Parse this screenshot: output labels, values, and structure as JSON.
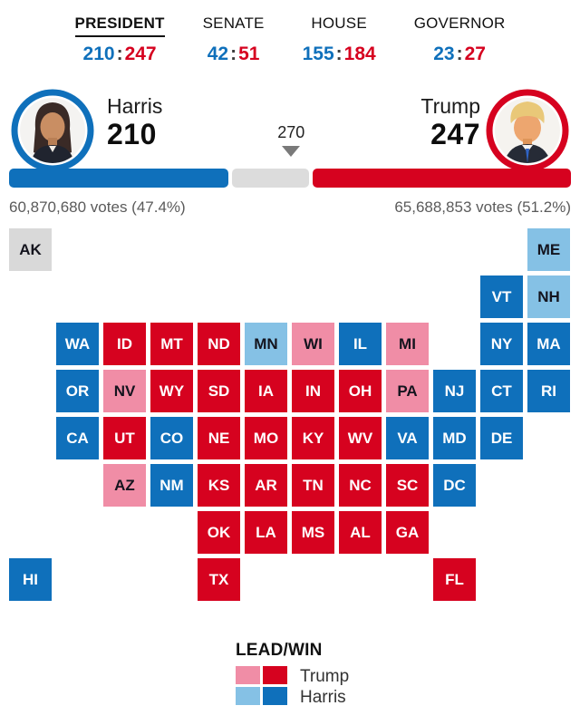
{
  "nav": {
    "separator": ":",
    "items": [
      {
        "id": "president",
        "label": "PRESIDENT",
        "dem": "210",
        "rep": "247",
        "active": true
      },
      {
        "id": "senate",
        "label": "SENATE",
        "dem": "42",
        "rep": "51",
        "active": false
      },
      {
        "id": "house",
        "label": "HOUSE",
        "dem": "155",
        "rep": "184",
        "active": false
      },
      {
        "id": "governor",
        "label": "GOVERNOR",
        "dem": "23",
        "rep": "27",
        "active": false
      }
    ]
  },
  "candidates": {
    "left": {
      "name": "Harris",
      "electoral": "210",
      "votes": "60,870,680 votes (47.4%)"
    },
    "right": {
      "name": "Trump",
      "electoral": "247",
      "votes": "65,688,853 votes (51.2%)"
    },
    "threshold_label": "270"
  },
  "bar": {
    "dem_pct": 39.0,
    "rep_pct": 45.9,
    "threshold_pct": 50.2
  },
  "colors": {
    "dem_win": "#0f70bb",
    "dem_lead": "#85c1e5",
    "rep_win": "#d6021f",
    "rep_lead": "#f08da6",
    "undecided": "#d9d9d9",
    "bar_track": "#dcdcdc",
    "marker": "#7a7a7a"
  },
  "map": {
    "tiles": [
      {
        "s": "AK",
        "c": 0,
        "r": 0,
        "st": "U"
      },
      {
        "s": "ME",
        "c": 11,
        "r": 0,
        "st": "DL"
      },
      {
        "s": "VT",
        "c": 10,
        "r": 1,
        "st": "DW"
      },
      {
        "s": "NH",
        "c": 11,
        "r": 1,
        "st": "DL"
      },
      {
        "s": "WA",
        "c": 1,
        "r": 2,
        "st": "DW"
      },
      {
        "s": "ID",
        "c": 2,
        "r": 2,
        "st": "RW"
      },
      {
        "s": "MT",
        "c": 3,
        "r": 2,
        "st": "RW"
      },
      {
        "s": "ND",
        "c": 4,
        "r": 2,
        "st": "RW"
      },
      {
        "s": "MN",
        "c": 5,
        "r": 2,
        "st": "DL"
      },
      {
        "s": "WI",
        "c": 6,
        "r": 2,
        "st": "RL"
      },
      {
        "s": "IL",
        "c": 7,
        "r": 2,
        "st": "DW"
      },
      {
        "s": "MI",
        "c": 8,
        "r": 2,
        "st": "RL"
      },
      {
        "s": "NY",
        "c": 10,
        "r": 2,
        "st": "DW"
      },
      {
        "s": "MA",
        "c": 11,
        "r": 2,
        "st": "DW"
      },
      {
        "s": "OR",
        "c": 1,
        "r": 3,
        "st": "DW"
      },
      {
        "s": "NV",
        "c": 2,
        "r": 3,
        "st": "RL"
      },
      {
        "s": "WY",
        "c": 3,
        "r": 3,
        "st": "RW"
      },
      {
        "s": "SD",
        "c": 4,
        "r": 3,
        "st": "RW"
      },
      {
        "s": "IA",
        "c": 5,
        "r": 3,
        "st": "RW"
      },
      {
        "s": "IN",
        "c": 6,
        "r": 3,
        "st": "RW"
      },
      {
        "s": "OH",
        "c": 7,
        "r": 3,
        "st": "RW"
      },
      {
        "s": "PA",
        "c": 8,
        "r": 3,
        "st": "RL"
      },
      {
        "s": "NJ",
        "c": 9,
        "r": 3,
        "st": "DW"
      },
      {
        "s": "CT",
        "c": 10,
        "r": 3,
        "st": "DW"
      },
      {
        "s": "RI",
        "c": 11,
        "r": 3,
        "st": "DW"
      },
      {
        "s": "CA",
        "c": 1,
        "r": 4,
        "st": "DW"
      },
      {
        "s": "UT",
        "c": 2,
        "r": 4,
        "st": "RW"
      },
      {
        "s": "CO",
        "c": 3,
        "r": 4,
        "st": "DW"
      },
      {
        "s": "NE",
        "c": 4,
        "r": 4,
        "st": "RW"
      },
      {
        "s": "MO",
        "c": 5,
        "r": 4,
        "st": "RW"
      },
      {
        "s": "KY",
        "c": 6,
        "r": 4,
        "st": "RW"
      },
      {
        "s": "WV",
        "c": 7,
        "r": 4,
        "st": "RW"
      },
      {
        "s": "VA",
        "c": 8,
        "r": 4,
        "st": "DW"
      },
      {
        "s": "MD",
        "c": 9,
        "r": 4,
        "st": "DW"
      },
      {
        "s": "DE",
        "c": 10,
        "r": 4,
        "st": "DW"
      },
      {
        "s": "AZ",
        "c": 2,
        "r": 5,
        "st": "RL"
      },
      {
        "s": "NM",
        "c": 3,
        "r": 5,
        "st": "DW"
      },
      {
        "s": "KS",
        "c": 4,
        "r": 5,
        "st": "RW"
      },
      {
        "s": "AR",
        "c": 5,
        "r": 5,
        "st": "RW"
      },
      {
        "s": "TN",
        "c": 6,
        "r": 5,
        "st": "RW"
      },
      {
        "s": "NC",
        "c": 7,
        "r": 5,
        "st": "RW"
      },
      {
        "s": "SC",
        "c": 8,
        "r": 5,
        "st": "RW"
      },
      {
        "s": "DC",
        "c": 9,
        "r": 5,
        "st": "DW"
      },
      {
        "s": "OK",
        "c": 4,
        "r": 6,
        "st": "RW"
      },
      {
        "s": "LA",
        "c": 5,
        "r": 6,
        "st": "RW"
      },
      {
        "s": "MS",
        "c": 6,
        "r": 6,
        "st": "RW"
      },
      {
        "s": "AL",
        "c": 7,
        "r": 6,
        "st": "RW"
      },
      {
        "s": "GA",
        "c": 8,
        "r": 6,
        "st": "RW"
      },
      {
        "s": "HI",
        "c": 0,
        "r": 7,
        "st": "DW"
      },
      {
        "s": "TX",
        "c": 4,
        "r": 7,
        "st": "RW"
      },
      {
        "s": "FL",
        "c": 9,
        "r": 7,
        "st": "RW"
      }
    ]
  },
  "legend": {
    "title": "LEAD/WIN",
    "rows": [
      {
        "label": "Trump",
        "lead": "rep_lead",
        "win": "rep_win"
      },
      {
        "label": "Harris",
        "lead": "dem_lead",
        "win": "dem_win"
      }
    ]
  }
}
